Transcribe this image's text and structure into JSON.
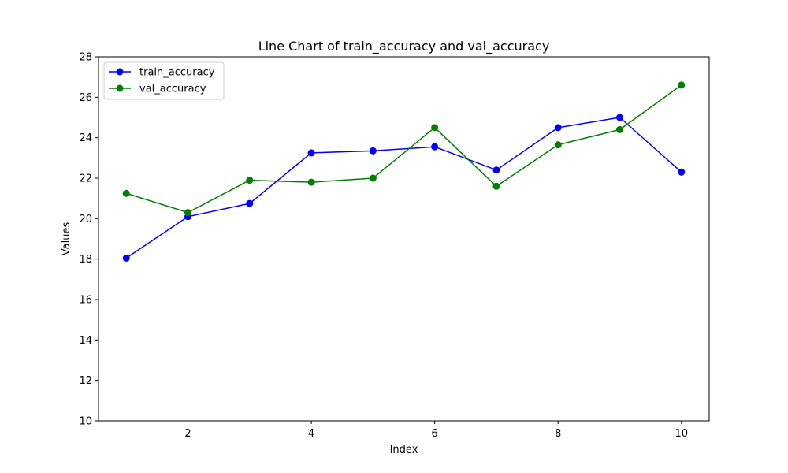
{
  "chart_data": {
    "type": "line",
    "title": "Line Chart of train_accuracy and val_accuracy",
    "xlabel": "Index",
    "ylabel": "Values",
    "x": [
      1,
      2,
      3,
      4,
      5,
      6,
      7,
      8,
      9,
      10
    ],
    "xlim": [
      0.55,
      10.45
    ],
    "ylim": [
      10,
      28
    ],
    "xticks": [
      2,
      4,
      6,
      8,
      10
    ],
    "yticks": [
      10,
      12,
      14,
      16,
      18,
      20,
      22,
      24,
      26,
      28
    ],
    "grid": false,
    "legend_position": "upper-left",
    "series": [
      {
        "name": "train_accuracy",
        "color": "#0000ff",
        "marker": "circle",
        "values": [
          18.05,
          20.1,
          20.75,
          23.25,
          23.35,
          23.55,
          22.4,
          24.5,
          25.0,
          22.3
        ]
      },
      {
        "name": "val_accuracy",
        "color": "#008000",
        "marker": "circle",
        "values": [
          21.25,
          20.3,
          21.9,
          21.8,
          22.0,
          24.5,
          21.6,
          23.65,
          24.4,
          26.6
        ]
      }
    ]
  }
}
